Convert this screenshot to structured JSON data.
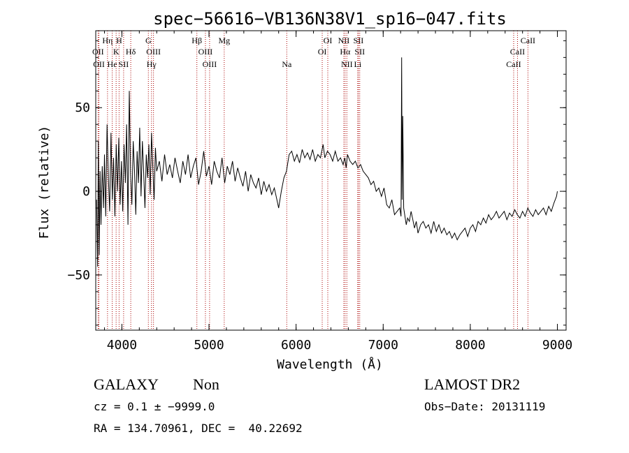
{
  "chart_data": {
    "type": "line",
    "title": "spec−56616−VB136N38V1_sp16−047.fits",
    "xlabel": "Wavelength (Å)",
    "ylabel": "Flux (relative)",
    "xlim": [
      3700,
      9100
    ],
    "ylim": [
      -83,
      96
    ],
    "xticks": [
      4000,
      5000,
      6000,
      7000,
      8000,
      9000
    ],
    "yticks": [
      -50,
      0,
      50
    ],
    "grid": false,
    "series": [
      {
        "x": [
          3710,
          3722,
          3730,
          3740,
          3750,
          3760,
          3775,
          3790,
          3800,
          3815,
          3830,
          3845,
          3860,
          3875,
          3890,
          3905,
          3920,
          3935,
          3950,
          3965,
          3980,
          3995,
          4010,
          4025,
          4040,
          4055,
          4070,
          4085,
          4100,
          4115,
          4130,
          4145,
          4160,
          4175,
          4190,
          4205,
          4220,
          4235,
          4250,
          4265,
          4280,
          4295,
          4310,
          4325,
          4340,
          4355,
          4370,
          4385,
          4400,
          4430,
          4460,
          4490,
          4520,
          4550,
          4580,
          4610,
          4640,
          4670,
          4700,
          4730,
          4760,
          4790,
          4820,
          4850,
          4880,
          4910,
          4940,
          4970,
          5000,
          5030,
          5060,
          5090,
          5120,
          5150,
          5180,
          5210,
          5240,
          5270,
          5300,
          5330,
          5360,
          5390,
          5420,
          5450,
          5480,
          5510,
          5540,
          5570,
          5600,
          5630,
          5660,
          5690,
          5720,
          5750,
          5780,
          5800,
          5830,
          5860,
          5890,
          5920,
          5950,
          5980,
          6010,
          6040,
          6070,
          6100,
          6130,
          6160,
          6190,
          6220,
          6250,
          6280,
          6310,
          6330,
          6360,
          6390,
          6420,
          6450,
          6480,
          6510,
          6540,
          6560,
          6575,
          6590,
          6620,
          6650,
          6680,
          6710,
          6740,
          6770,
          6800,
          6830,
          6860,
          6890,
          6920,
          6950,
          6980,
          7010,
          7040,
          7070,
          7100,
          7130,
          7160,
          7190,
          7205,
          7212,
          7218,
          7225,
          7235,
          7250,
          7265,
          7280,
          7300,
          7320,
          7340,
          7360,
          7380,
          7400,
          7430,
          7460,
          7490,
          7520,
          7550,
          7580,
          7610,
          7640,
          7670,
          7700,
          7730,
          7760,
          7790,
          7820,
          7850,
          7880,
          7910,
          7940,
          7970,
          8000,
          8030,
          8060,
          8090,
          8120,
          8150,
          8180,
          8210,
          8240,
          8270,
          8300,
          8330,
          8360,
          8390,
          8420,
          8450,
          8480,
          8510,
          8540,
          8570,
          8600,
          8630,
          8660,
          8690,
          8720,
          8750,
          8780,
          8810,
          8840,
          8870,
          8900,
          8930,
          8960,
          8990,
          9000
        ],
        "y": [
          -5,
          -45,
          30,
          -38,
          12,
          -20,
          15,
          -10,
          22,
          -15,
          40,
          8,
          -12,
          35,
          -5,
          20,
          -15,
          28,
          0,
          32,
          -8,
          18,
          -12,
          28,
          5,
          40,
          -20,
          60,
          10,
          -8,
          30,
          12,
          -14,
          24,
          5,
          38,
          -3,
          30,
          12,
          -10,
          22,
          8,
          28,
          -2,
          35,
          15,
          -5,
          26,
          12,
          18,
          6,
          22,
          10,
          16,
          8,
          20,
          12,
          5,
          18,
          10,
          22,
          8,
          15,
          20,
          4,
          12,
          24,
          9,
          15,
          4,
          18,
          12,
          8,
          20,
          5,
          15,
          10,
          18,
          6,
          14,
          8,
          3,
          12,
          0,
          10,
          5,
          2,
          8,
          -2,
          6,
          0,
          4,
          -2,
          2,
          -5,
          -10,
          0,
          8,
          12,
          22,
          24,
          18,
          22,
          17,
          25,
          20,
          23,
          19,
          25,
          18,
          22,
          20,
          28,
          20,
          24,
          22,
          18,
          24,
          18,
          20,
          16,
          20,
          14,
          22,
          18,
          16,
          18,
          14,
          16,
          12,
          10,
          8,
          4,
          6,
          0,
          2,
          -3,
          2,
          -8,
          -10,
          -5,
          -14,
          -12,
          -10,
          -15,
          80,
          -5,
          45,
          -10,
          -15,
          -20,
          -16,
          -18,
          -12,
          -17,
          -22,
          -18,
          -25,
          -20,
          -18,
          -22,
          -20,
          -25,
          -18,
          -24,
          -20,
          -25,
          -22,
          -26,
          -24,
          -28,
          -25,
          -29,
          -26,
          -24,
          -22,
          -27,
          -22,
          -20,
          -24,
          -18,
          -20,
          -16,
          -19,
          -14,
          -17,
          -15,
          -12,
          -16,
          -14,
          -12,
          -17,
          -13,
          -15,
          -11,
          -14,
          -16,
          -12,
          -15,
          -10,
          -13,
          -15,
          -11,
          -14,
          -12,
          -10,
          -14,
          -9,
          -12,
          -7,
          -3,
          0
        ]
      }
    ],
    "lines": [
      {
        "label": "OII",
        "x": 3727,
        "row": 2
      },
      {
        "label": "OII",
        "x": 3737,
        "row": 3
      },
      {
        "label": "Hη",
        "x": 3835,
        "row": 1
      },
      {
        "label": "He",
        "x": 3889,
        "row": 3
      },
      {
        "label": "K",
        "x": 3934,
        "row": 2
      },
      {
        "label": "H",
        "x": 3968,
        "row": 1
      },
      {
        "label": "SII",
        "x": 4020,
        "row": 3
      },
      {
        "label": "Hδ",
        "x": 4102,
        "row": 2
      },
      {
        "label": "G",
        "x": 4304,
        "row": 1
      },
      {
        "label": "OIII",
        "x": 4363,
        "row": 2
      },
      {
        "label": "Hγ",
        "x": 4340,
        "row": 3
      },
      {
        "label": "Hβ",
        "x": 4861,
        "row": 1
      },
      {
        "label": "OIII",
        "x": 4959,
        "row": 2
      },
      {
        "label": "OIII",
        "x": 5007,
        "row": 3
      },
      {
        "label": "Mg",
        "x": 5175,
        "row": 1
      },
      {
        "label": "Na",
        "x": 5893,
        "row": 3
      },
      {
        "label": "OI",
        "x": 6300,
        "row": 2
      },
      {
        "label": "OI",
        "x": 6364,
        "row": 1
      },
      {
        "label": "NII",
        "x": 6548,
        "row": 1
      },
      {
        "label": "Hα",
        "x": 6563,
        "row": 2
      },
      {
        "label": "NII",
        "x": 6583,
        "row": 3
      },
      {
        "label": "SII",
        "x": 6716,
        "row": 1
      },
      {
        "label": "SII",
        "x": 6731,
        "row": 2
      },
      {
        "label": "Li",
        "x": 6708,
        "row": 3
      },
      {
        "label": "CaII",
        "x": 8498,
        "row": 3
      },
      {
        "label": "CaII",
        "x": 8542,
        "row": 2
      },
      {
        "label": "CaII",
        "x": 8662,
        "row": 1
      }
    ]
  },
  "info": {
    "class": "GALAXY",
    "subclass": "Non",
    "survey": "LAMOST DR2",
    "cz": "cz = 0.1 ± −9999.0",
    "obs_date": "Obs−Date: 20131119",
    "coords": "RA = 134.70961, DEC =  40.22692"
  },
  "colors": {
    "spectrum": "#000000",
    "line_markers": "#aa0000"
  }
}
